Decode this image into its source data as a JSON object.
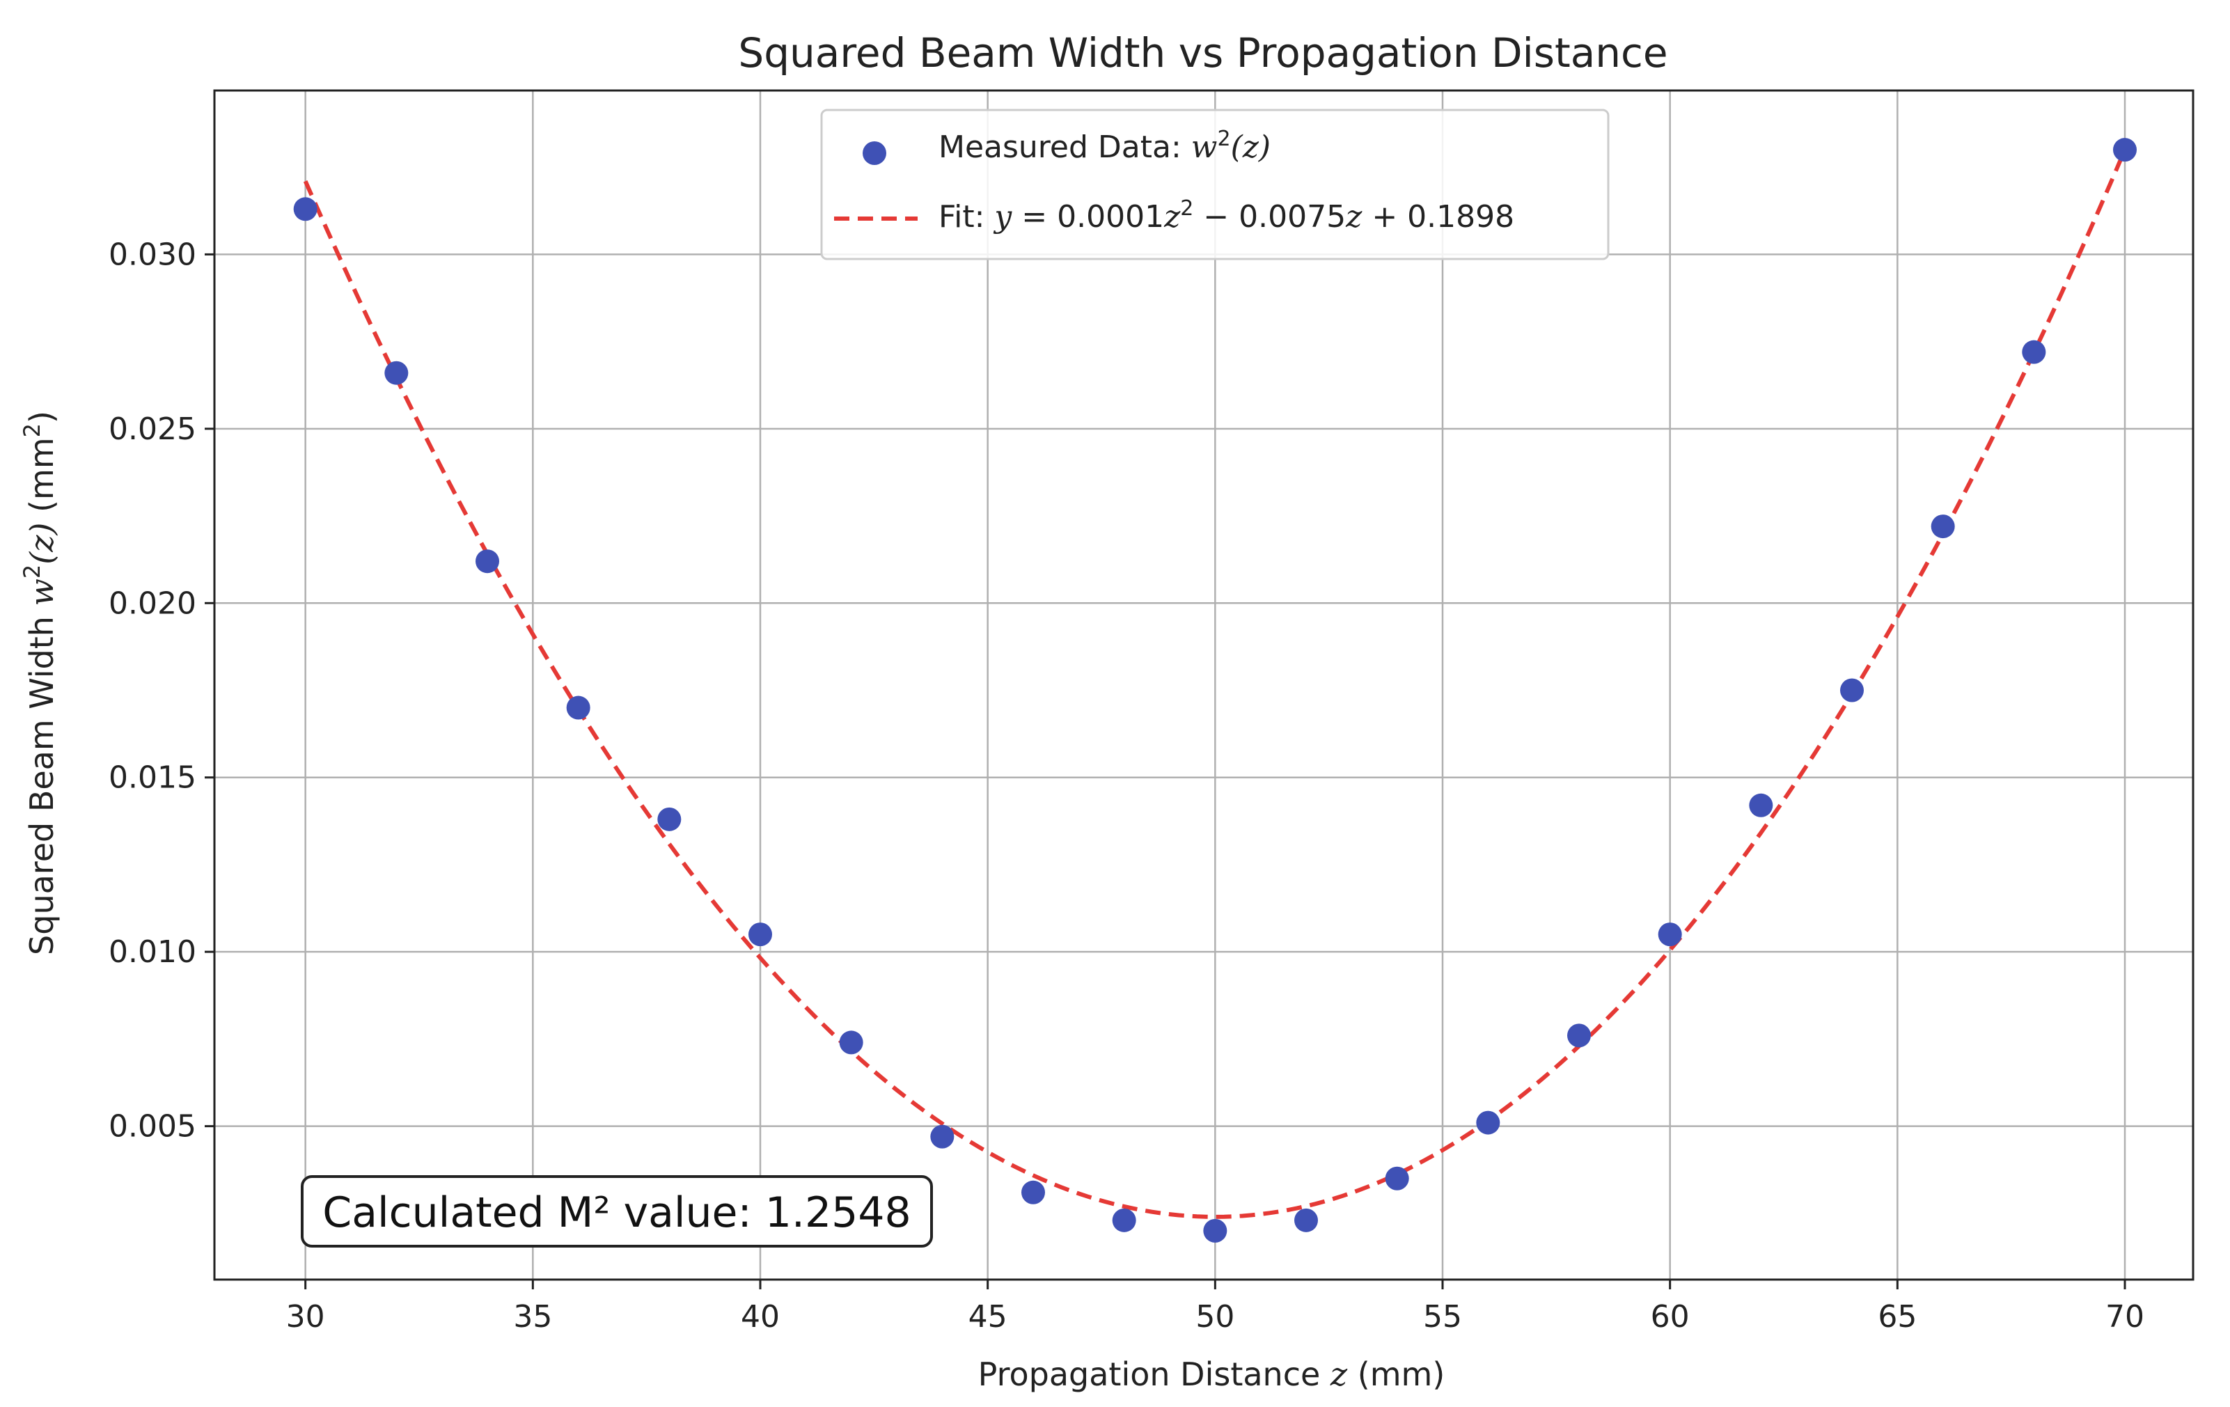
{
  "chart_data": {
    "type": "scatter",
    "title": "Squared Beam Width vs Propagation Distance",
    "xlabel_prefix": "Propagation Distance ",
    "xlabel_var": "z",
    "xlabel_suffix": " (mm)",
    "ylabel_prefix": "Squared Beam Width ",
    "ylabel_var": "w",
    "ylabel_sup": "2",
    "ylabel_arg": "(z)",
    "ylabel_unit": " (mm",
    "ylabel_unit_sup": "2",
    "ylabel_unit_close": ")",
    "xlim": [
      28,
      71.5
    ],
    "ylim": [
      0.0006,
      0.0347
    ],
    "xticks": [
      30,
      35,
      40,
      45,
      50,
      55,
      60,
      65,
      70
    ],
    "xtick_labels": [
      "30",
      "35",
      "40",
      "45",
      "50",
      "55",
      "60",
      "65",
      "70"
    ],
    "yticks": [
      0.005,
      0.01,
      0.015,
      0.02,
      0.025,
      0.03
    ],
    "ytick_labels": [
      "0.005",
      "0.010",
      "0.015",
      "0.020",
      "0.025",
      "0.030"
    ],
    "grid": true,
    "legend_position": "top-center",
    "colors": {
      "points": "#3f51b5",
      "fit": "#e53935",
      "grid": "#b0b0b0",
      "frame": "#222222"
    },
    "series": [
      {
        "name": "Measured Data: w²(z)",
        "legend_prefix": "Measured Data: ",
        "legend_var": "w",
        "legend_sup": "2",
        "legend_arg": "(z)",
        "kind": "scatter",
        "x": [
          30,
          32,
          34,
          36,
          38,
          40,
          42,
          44,
          46,
          48,
          50,
          52,
          54,
          56,
          58,
          60,
          62,
          64,
          66,
          68,
          70
        ],
        "y": [
          0.0313,
          0.0266,
          0.0212,
          0.017,
          0.0138,
          0.0105,
          0.0074,
          0.0047,
          0.0031,
          0.0023,
          0.002,
          0.0023,
          0.0035,
          0.0051,
          0.0076,
          0.0105,
          0.0142,
          0.0175,
          0.0222,
          0.0272,
          0.033
        ]
      },
      {
        "name": "Fit: y = 0.0001z² − 0.0075z + 0.1898",
        "legend_prefix": "Fit: ",
        "legend_formula_a": "y",
        "legend_formula_b": " = 0.0001",
        "legend_formula_c": "z",
        "legend_formula_sup": "2",
        "legend_formula_d": " − 0.0075",
        "legend_formula_e": "z",
        "legend_formula_f": " + 0.1898",
        "kind": "line",
        "x_range": [
          30,
          70
        ],
        "vertex_x": 50,
        "vertex_y": 0.0024,
        "end_y_left": 0.0321,
        "end_y_right": 0.033
      }
    ],
    "annotation": {
      "text": "Calculated M² value: 1.2548",
      "position": "bottom-left"
    }
  }
}
